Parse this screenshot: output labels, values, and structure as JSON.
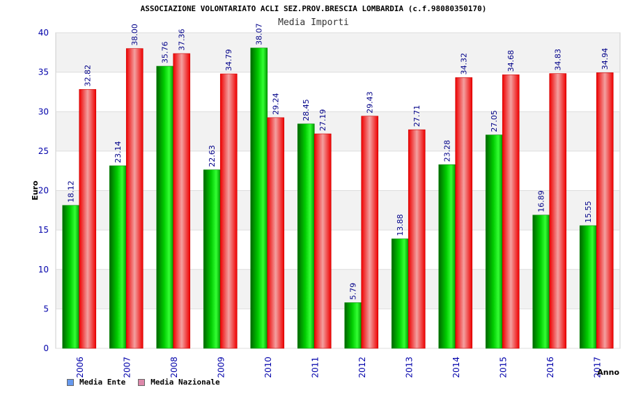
{
  "header": {
    "title": "ASSOCIAZIONE VOLONTARIATO ACLI SEZ.PROV.BRESCIA LOMBARDIA (c.f.98080350170)",
    "subtitle": "Media Importi"
  },
  "legend": {
    "items": [
      {
        "label": "Media Ente",
        "color": "#6699ee"
      },
      {
        "label": "Media Nazionale",
        "color": "#dd88aa"
      }
    ]
  },
  "chart_data": {
    "type": "bar",
    "title": "ASSOCIAZIONE VOLONTARIATO ACLI SEZ.PROV.BRESCIA LOMBARDIA (c.f.98080350170)",
    "subtitle": "Media Importi",
    "xlabel": "Anno",
    "ylabel": "Euro",
    "ylim": [
      0,
      40
    ],
    "yticks": [
      0,
      5,
      10,
      15,
      20,
      25,
      30,
      35,
      40
    ],
    "grid": true,
    "legend_position": "bottom-left",
    "categories": [
      "2006",
      "2007",
      "2008",
      "2009",
      "2010",
      "2011",
      "2012",
      "2013",
      "2014",
      "2015",
      "2016",
      "2017"
    ],
    "series": [
      {
        "name": "Media Ente",
        "color": "#00aa00",
        "values": [
          18.12,
          23.14,
          35.76,
          22.63,
          38.07,
          28.45,
          5.79,
          13.88,
          23.28,
          27.05,
          16.89,
          15.55
        ],
        "labels": [
          "18.12",
          "23.14",
          "35.76",
          "22.63",
          "38.07",
          "28.45",
          "5.79",
          "13.88",
          "23.28",
          "27.05",
          "16.89",
          "15.55"
        ]
      },
      {
        "name": "Media Nazionale",
        "color": "#ee1111",
        "values": [
          32.82,
          38.0,
          37.36,
          34.79,
          29.24,
          27.19,
          29.43,
          27.71,
          34.32,
          34.68,
          34.83,
          34.94
        ],
        "labels": [
          "32.82",
          "38.00",
          "37.36",
          "34.79",
          "29.24",
          "27.19",
          "29.43",
          "27.71",
          "34.32",
          "34.68",
          "34.83",
          "34.94"
        ]
      }
    ]
  }
}
